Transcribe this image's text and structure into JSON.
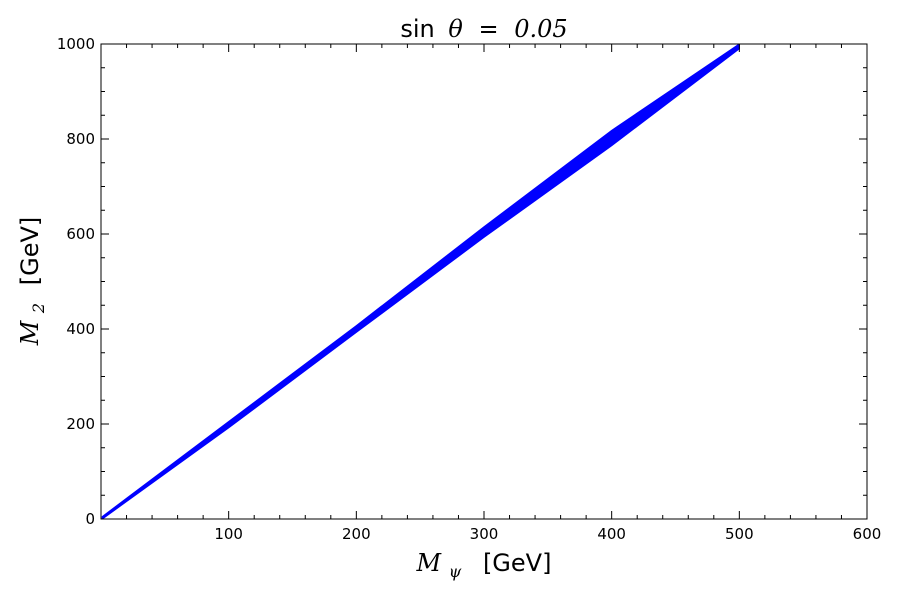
{
  "chart_data": {
    "type": "area",
    "title": "sin θ = 0.05",
    "title_parts": {
      "prefix": "sin",
      "symbol": "θ",
      "equals": "=",
      "value": "0.05"
    },
    "xlabel": "M_ψ [GeV]",
    "ylabel": "M_2 [GeV]",
    "xlabel_parts": {
      "symbol": "M",
      "subscript": "ψ",
      "unit": "[GeV]"
    },
    "ylabel_parts": {
      "symbol": "M",
      "subscript": "2",
      "unit": "[GeV]"
    },
    "xlim": [
      0,
      600
    ],
    "ylim": [
      0,
      1000
    ],
    "xticks": [
      100,
      200,
      300,
      400,
      500,
      600
    ],
    "yticks": [
      0,
      200,
      400,
      600,
      800,
      1000
    ],
    "xtick_labels": [
      "100",
      "200",
      "300",
      "400",
      "500",
      "600"
    ],
    "ytick_labels": [
      "0",
      "200",
      "400",
      "600",
      "800",
      "1000"
    ],
    "grid": false,
    "series": [
      {
        "color": "#0000ff",
        "lower": [
          {
            "x": 1,
            "y": 0
          },
          {
            "x": 100,
            "y": 192
          },
          {
            "x": 200,
            "y": 393
          },
          {
            "x": 300,
            "y": 593
          },
          {
            "x": 400,
            "y": 786
          },
          {
            "x": 500,
            "y": 990
          }
        ],
        "upper": [
          {
            "x": 1,
            "y": 5
          },
          {
            "x": 100,
            "y": 205
          },
          {
            "x": 200,
            "y": 407
          },
          {
            "x": 300,
            "y": 615
          },
          {
            "x": 400,
            "y": 818
          },
          {
            "x": 500,
            "y": 1000
          }
        ]
      }
    ]
  }
}
